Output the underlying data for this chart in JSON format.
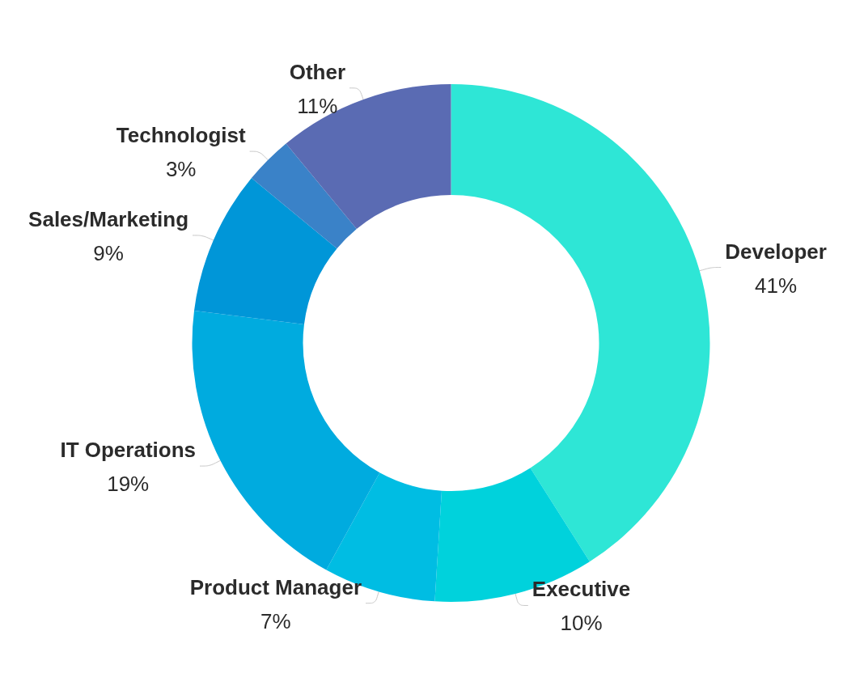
{
  "chart_data": {
    "type": "donut",
    "categories": [
      "Developer",
      "Executive",
      "Product Manager",
      "IT Operations",
      "Sales/Marketing",
      "Technologist",
      "Other"
    ],
    "values": [
      41,
      10,
      7,
      19,
      9,
      3,
      11
    ],
    "value_labels": [
      "41%",
      "10%",
      "7%",
      "19%",
      "9%",
      "3%",
      "11%"
    ],
    "colors": [
      "#2ee6d6",
      "#00d2dc",
      "#00bde3",
      "#00abdf",
      "#0096d8",
      "#3a82c8",
      "#5a6bb3"
    ],
    "legend": false
  }
}
